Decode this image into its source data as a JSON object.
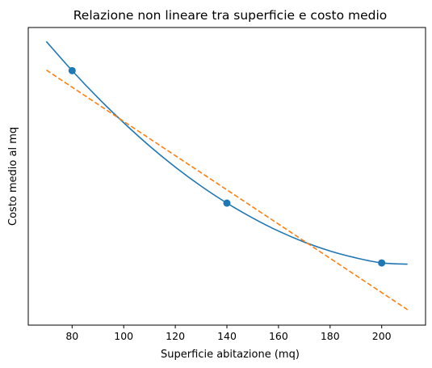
{
  "chart_data": {
    "type": "line",
    "title": "Relazione non lineare tra superficie e costo medio",
    "xlabel": "Superficie abitazione (mq)",
    "ylabel": "Costo medio al mq",
    "xlim": [
      63,
      217
    ],
    "ylim": [
      0,
      1
    ],
    "x_ticks": [
      80,
      100,
      120,
      140,
      160,
      180,
      200
    ],
    "y_ticks_shown": false,
    "grid": false,
    "legend": "none",
    "series": [
      {
        "kind": "curve",
        "style": "solid",
        "color": "#1f77b4",
        "x": [
          70,
          80,
          90,
          100,
          110,
          120,
          130,
          140,
          150,
          160,
          170,
          180,
          190,
          200,
          210
        ],
        "y": [
          0.953,
          0.855,
          0.764,
          0.68,
          0.602,
          0.531,
          0.467,
          0.41,
          0.36,
          0.316,
          0.279,
          0.249,
          0.226,
          0.209,
          0.205
        ]
      },
      {
        "kind": "points",
        "style": "markers",
        "color": "#1f77b4",
        "x": [
          80,
          140,
          200
        ],
        "y": [
          0.855,
          0.41,
          0.209
        ]
      },
      {
        "kind": "trend",
        "style": "dashed",
        "color": "#ff7f0e",
        "x": [
          70,
          210
        ],
        "y": [
          0.857,
          0.052
        ]
      }
    ]
  }
}
